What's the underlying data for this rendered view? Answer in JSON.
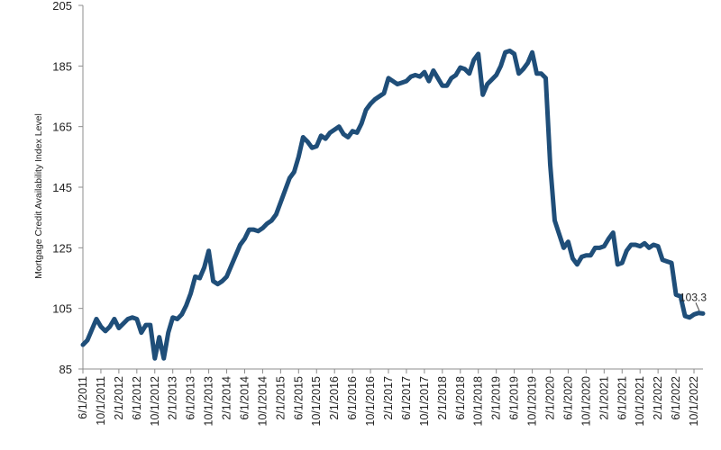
{
  "chart_data": {
    "type": "line",
    "title": "",
    "xlabel": "",
    "ylabel": "Mortgage Credit Availability Index Level",
    "ylim": [
      85,
      205
    ],
    "yticks": [
      85,
      105,
      125,
      145,
      165,
      185,
      205
    ],
    "xlim": [
      "2011-06",
      "2022-12"
    ],
    "xticks": [
      "6/1/2011",
      "10/1/2011",
      "2/1/2012",
      "6/1/2012",
      "10/1/2012",
      "2/1/2013",
      "6/1/2013",
      "10/1/2013",
      "2/1/2014",
      "6/1/2014",
      "10/1/2014",
      "2/1/2015",
      "6/1/2015",
      "10/1/2015",
      "2/1/2016",
      "6/1/2016",
      "10/1/2016",
      "2/1/2017",
      "6/1/2017",
      "10/1/2017",
      "2/1/2018",
      "6/1/2018",
      "10/1/2018",
      "2/1/2019",
      "6/1/2019",
      "10/1/2019",
      "2/1/2020",
      "6/1/2020",
      "10/1/2020",
      "2/1/2021",
      "6/1/2021",
      "10/1/2021",
      "2/1/2022",
      "6/1/2022",
      "10/1/2022"
    ],
    "grid": false,
    "legend": "none",
    "color": "#1f4e79",
    "series": [
      {
        "name": "",
        "points": [
          [
            "2011-06",
            93
          ],
          [
            "2011-07",
            94.5
          ],
          [
            "2011-08",
            98
          ],
          [
            "2011-09",
            101.5
          ],
          [
            "2011-10",
            99
          ],
          [
            "2011-11",
            97.5
          ],
          [
            "2011-12",
            99
          ],
          [
            "2012-01",
            101.5
          ],
          [
            "2012-02",
            98.5
          ],
          [
            "2012-03",
            100
          ],
          [
            "2012-04",
            101.5
          ],
          [
            "2012-05",
            102
          ],
          [
            "2012-06",
            101.5
          ],
          [
            "2012-07",
            97
          ],
          [
            "2012-08",
            99.5
          ],
          [
            "2012-09",
            99.5
          ],
          [
            "2012-10",
            88.5
          ],
          [
            "2012-11",
            95.5
          ],
          [
            "2012-12",
            88.5
          ],
          [
            "2013-01",
            97
          ],
          [
            "2013-02",
            102
          ],
          [
            "2013-03",
            101.5
          ],
          [
            "2013-04",
            103
          ],
          [
            "2013-05",
            106
          ],
          [
            "2013-06",
            110
          ],
          [
            "2013-07",
            115.5
          ],
          [
            "2013-08",
            115
          ],
          [
            "2013-09",
            118.5
          ],
          [
            "2013-10",
            124
          ],
          [
            "2013-11",
            114
          ],
          [
            "2013-12",
            113
          ],
          [
            "2014-01",
            114
          ],
          [
            "2014-02",
            115.5
          ],
          [
            "2014-03",
            119
          ],
          [
            "2014-04",
            122.5
          ],
          [
            "2014-05",
            126
          ],
          [
            "2014-06",
            128
          ],
          [
            "2014-07",
            131
          ],
          [
            "2014-08",
            131
          ],
          [
            "2014-09",
            130.5
          ],
          [
            "2014-10",
            131.5
          ],
          [
            "2014-11",
            133
          ],
          [
            "2014-12",
            134
          ],
          [
            "2015-01",
            136
          ],
          [
            "2015-02",
            140
          ],
          [
            "2015-03",
            144
          ],
          [
            "2015-04",
            148
          ],
          [
            "2015-05",
            150
          ],
          [
            "2015-06",
            155
          ],
          [
            "2015-07",
            161.5
          ],
          [
            "2015-08",
            160
          ],
          [
            "2015-09",
            158
          ],
          [
            "2015-10",
            158.5
          ],
          [
            "2015-11",
            162
          ],
          [
            "2015-12",
            161
          ],
          [
            "2016-01",
            163
          ],
          [
            "2016-02",
            164
          ],
          [
            "2016-03",
            165
          ],
          [
            "2016-04",
            162.5
          ],
          [
            "2016-05",
            161.5
          ],
          [
            "2016-06",
            163.5
          ],
          [
            "2016-07",
            163
          ],
          [
            "2016-08",
            166
          ],
          [
            "2016-09",
            170.5
          ],
          [
            "2016-10",
            172.5
          ],
          [
            "2016-11",
            174
          ],
          [
            "2016-12",
            175
          ],
          [
            "2017-01",
            176
          ],
          [
            "2017-02",
            181
          ],
          [
            "2017-03",
            180
          ],
          [
            "2017-04",
            179
          ],
          [
            "2017-05",
            179.5
          ],
          [
            "2017-06",
            180
          ],
          [
            "2017-07",
            181.5
          ],
          [
            "2017-08",
            182
          ],
          [
            "2017-09",
            181.5
          ],
          [
            "2017-10",
            183
          ],
          [
            "2017-11",
            180
          ],
          [
            "2017-12",
            183.5
          ],
          [
            "2018-01",
            181
          ],
          [
            "2018-02",
            178.5
          ],
          [
            "2018-03",
            178.5
          ],
          [
            "2018-04",
            181
          ],
          [
            "2018-05",
            182
          ],
          [
            "2018-06",
            184.5
          ],
          [
            "2018-07",
            184
          ],
          [
            "2018-08",
            182.5
          ],
          [
            "2018-09",
            187
          ],
          [
            "2018-10",
            189
          ],
          [
            "2018-11",
            175.5
          ],
          [
            "2018-12",
            179
          ],
          [
            "2019-01",
            180.5
          ],
          [
            "2019-02",
            182
          ],
          [
            "2019-03",
            185
          ],
          [
            "2019-04",
            189.5
          ],
          [
            "2019-05",
            190
          ],
          [
            "2019-06",
            189
          ],
          [
            "2019-07",
            182.5
          ],
          [
            "2019-08",
            184
          ],
          [
            "2019-09",
            186
          ],
          [
            "2019-10",
            189.5
          ],
          [
            "2019-11",
            182.5
          ],
          [
            "2019-12",
            182.5
          ],
          [
            "2020-01",
            181
          ],
          [
            "2020-02",
            152.5
          ],
          [
            "2020-03",
            134
          ],
          [
            "2020-04",
            129.5
          ],
          [
            "2020-05",
            125
          ],
          [
            "2020-06",
            127
          ],
          [
            "2020-07",
            121.5
          ],
          [
            "2020-08",
            119.5
          ],
          [
            "2020-09",
            122
          ],
          [
            "2020-10",
            122.5
          ],
          [
            "2020-11",
            122.5
          ],
          [
            "2020-12",
            125
          ],
          [
            "2021-01",
            125
          ],
          [
            "2021-02",
            125.5
          ],
          [
            "2021-03",
            128
          ],
          [
            "2021-04",
            130
          ],
          [
            "2021-05",
            119.5
          ],
          [
            "2021-06",
            120
          ],
          [
            "2021-07",
            124
          ],
          [
            "2021-08",
            126
          ],
          [
            "2021-09",
            126
          ],
          [
            "2021-10",
            125.5
          ],
          [
            "2021-11",
            126.5
          ],
          [
            "2021-12",
            125
          ],
          [
            "2022-01",
            126
          ],
          [
            "2022-02",
            125.5
          ],
          [
            "2022-03",
            121
          ],
          [
            "2022-04",
            120.5
          ],
          [
            "2022-05",
            120
          ],
          [
            "2022-06",
            109.5
          ],
          [
            "2022-07",
            109
          ],
          [
            "2022-08",
            102.5
          ],
          [
            "2022-09",
            102
          ],
          [
            "2022-10",
            103
          ],
          [
            "2022-11",
            103.5
          ],
          [
            "2022-12",
            103.3
          ]
        ]
      }
    ],
    "annotations": [
      {
        "text": "103.3",
        "x": "2022-12",
        "y": 103.3
      }
    ]
  }
}
